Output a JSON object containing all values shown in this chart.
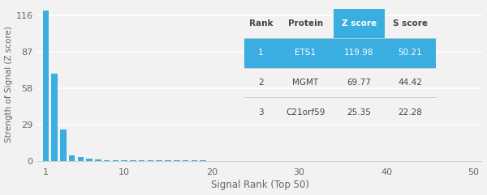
{
  "bar_values": [
    119.98,
    69.77,
    25.35,
    4.5,
    2.8,
    1.5,
    1.0,
    0.8,
    0.6,
    0.5,
    0.4,
    0.35,
    0.3,
    0.28,
    0.26,
    0.24,
    0.22,
    0.2,
    0.19,
    0.18,
    0.17,
    0.16,
    0.15,
    0.14,
    0.13,
    0.12,
    0.11,
    0.1,
    0.09,
    0.08,
    0.07,
    0.07,
    0.06,
    0.06,
    0.05,
    0.05,
    0.04,
    0.04,
    0.04,
    0.03,
    0.03,
    0.03,
    0.03,
    0.02,
    0.02,
    0.02,
    0.02,
    0.02,
    0.01,
    0.01
  ],
  "bar_color": "#3aaee0",
  "background_color": "#f2f2f2",
  "xlabel": "Signal Rank (Top 50)",
  "ylabel": "Strength of Signal (Z score)",
  "yticks": [
    0,
    29,
    58,
    87,
    116
  ],
  "xticks": [
    1,
    10,
    20,
    30,
    40,
    50
  ],
  "xlim": [
    0,
    51
  ],
  "ylim": [
    -3,
    125
  ],
  "table_data": [
    [
      "Rank",
      "Protein",
      "Z score",
      "S score"
    ],
    [
      "1",
      "ETS1",
      "119.98",
      "50.21"
    ],
    [
      "2",
      "MGMT",
      "69.77",
      "44.42"
    ],
    [
      "3",
      "C21orf59",
      "25.35",
      "22.28"
    ]
  ],
  "header_bg": "#3aaee0",
  "header_text_color": "#ffffff",
  "row1_bg": "#3aaee0",
  "row1_text_color": "#ffffff",
  "row_bg": "#f2f2f2",
  "row_text_color": "#444444",
  "table_font_size": 7.5,
  "header_font_size": 7.5
}
